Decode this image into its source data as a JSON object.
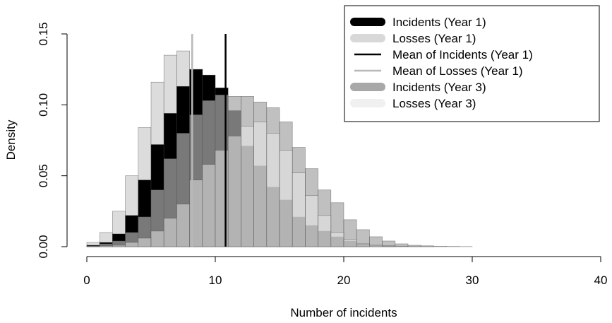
{
  "chart_data": {
    "type": "bar",
    "subtype": "overlaid-histogram",
    "xlabel": "Number of incidents",
    "ylabel": "Density",
    "xlim": [
      0,
      40
    ],
    "ylim": [
      0,
      0.15
    ],
    "xticks": [
      "0",
      "10",
      "20",
      "30",
      "40"
    ],
    "yticks": [
      "0.00",
      "0.05",
      "0.10",
      "0.15"
    ],
    "bin_edges": [
      0,
      1,
      2,
      3,
      4,
      5,
      6,
      7,
      8,
      9,
      10,
      11,
      12,
      13,
      14,
      15,
      16,
      17,
      18,
      19,
      20,
      21,
      22,
      23,
      24,
      25,
      26,
      27,
      28,
      29,
      30,
      31,
      32,
      33,
      34,
      35,
      36,
      37,
      38,
      39,
      40
    ],
    "series": [
      {
        "name": "Incidents (Year 1)",
        "color": "#000000",
        "values": [
          0.001,
          0.003,
          0.009,
          0.022,
          0.047,
          0.072,
          0.094,
          0.113,
          0.125,
          0.121,
          0.112,
          0.096,
          0.071,
          0.057,
          0.042,
          0.033,
          0.021,
          0.015,
          0.011,
          0.007,
          0.004,
          0.002,
          0.001,
          0.0007,
          0.0004,
          0.0002,
          0.0001,
          0,
          0,
          0,
          0,
          0,
          0,
          0,
          0,
          0,
          0,
          0,
          0,
          0
        ]
      },
      {
        "name": "Losses (Year 1)",
        "color": "#dcdcdc",
        "values": [
          0.003,
          0.01,
          0.025,
          0.05,
          0.084,
          0.116,
          0.135,
          0.138,
          0.125,
          0.105,
          0.082,
          0.06,
          0.041,
          0.028,
          0.017,
          0.01,
          0.005,
          0.003,
          0.0015,
          0.0007,
          0.0003,
          0.0001,
          0,
          0,
          0,
          0,
          0,
          0,
          0,
          0,
          0,
          0,
          0,
          0,
          0,
          0,
          0,
          0,
          0,
          0
        ]
      },
      {
        "name": "Incidents (Year 3)",
        "color": "#a8a8a8",
        "values": [
          0.0005,
          0.002,
          0.004,
          0.01,
          0.021,
          0.04,
          0.062,
          0.08,
          0.093,
          0.103,
          0.107,
          0.106,
          0.106,
          0.102,
          0.098,
          0.088,
          0.07,
          0.055,
          0.04,
          0.031,
          0.019,
          0.012,
          0.007,
          0.004,
          0.002,
          0.001,
          0.0006,
          0.0003,
          0.0002,
          0.0001,
          0,
          0,
          0,
          0,
          0,
          0,
          0,
          0,
          0,
          0
        ]
      },
      {
        "name": "Losses (Year 3)",
        "color": "#eeeeee",
        "values": [
          0.0003,
          0.0006,
          0.001,
          0.003,
          0.006,
          0.011,
          0.02,
          0.03,
          0.047,
          0.058,
          0.068,
          0.078,
          0.085,
          0.088,
          0.08,
          0.068,
          0.052,
          0.036,
          0.022,
          0.01,
          0.005,
          0.002,
          0.001,
          0.0005,
          0,
          0,
          0,
          0,
          0,
          0,
          0,
          0,
          0,
          0,
          0,
          0,
          0,
          0,
          0,
          0
        ]
      }
    ],
    "mean_lines": [
      {
        "name": "Mean of Incidents (Year 1)",
        "x": 10.8,
        "y_top": 0.15,
        "color": "#000000"
      },
      {
        "name": "Mean of Losses (Year 1)",
        "x": 8.2,
        "y_top": 0.15,
        "color": "#b8b8b8"
      }
    ],
    "legend": {
      "position": "top-right",
      "entries": [
        {
          "label": "Incidents (Year 1)",
          "color": "#000000",
          "style": "thick"
        },
        {
          "label": "Losses (Year 1)",
          "color": "#d8d8d8",
          "style": "thick"
        },
        {
          "label": "Mean of Incidents (Year 1)",
          "color": "#000000",
          "style": "line"
        },
        {
          "label": "Mean of Losses (Year 1)",
          "color": "#b8b8b8",
          "style": "line"
        },
        {
          "label": "Incidents (Year 3)",
          "color": "#a8a8a8",
          "style": "thick"
        },
        {
          "label": "Losses (Year 3)",
          "color": "#f0f0f0",
          "style": "thick"
        }
      ]
    },
    "grid": false
  }
}
